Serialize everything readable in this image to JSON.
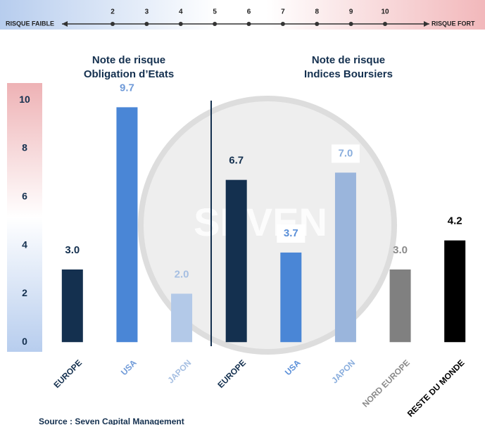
{
  "chart_data": {
    "type": "bar",
    "risk_scale": {
      "left_label": "RISQUE FAIBLE",
      "right_label": "RISQUE FORT",
      "ticks": [
        2,
        3,
        4,
        5,
        6,
        7,
        8,
        9,
        10
      ]
    },
    "group_titles": [
      "Note de risque",
      "Obligation d’Etats",
      "Note de risque",
      "Indices Boursiers"
    ],
    "watermark": "SEVEN",
    "categories": [
      "EUROPE",
      "USA",
      "JAPON",
      "EUROPE",
      "USA",
      "JAPON",
      "NORD EUROPE",
      "RESTE DU MONDE"
    ],
    "values": [
      3.0,
      9.7,
      2.0,
      6.7,
      3.7,
      7.0,
      3.0,
      4.2
    ],
    "value_labels": [
      "3.0",
      "9.7",
      "2.0",
      "6.7",
      "3.7",
      "7.0",
      "3.0",
      "4.2"
    ],
    "colors": [
      "#14304f",
      "#4a86d6",
      "#b3c9e8",
      "#14304f",
      "#4a86d6",
      "#9ab5dc",
      "#808080",
      "#000000"
    ],
    "label_colors": [
      "#14304f",
      "#6f9ad8",
      "#a6bfe2",
      "#14304f",
      "#5a8fd8",
      "#8aaedd",
      "#8a8a8a",
      "#000000"
    ],
    "ylim": [
      -0.4,
      10.7
    ],
    "yticks": [
      0,
      2,
      4,
      6,
      8,
      10
    ],
    "source": "Source : Seven Capital Management"
  }
}
